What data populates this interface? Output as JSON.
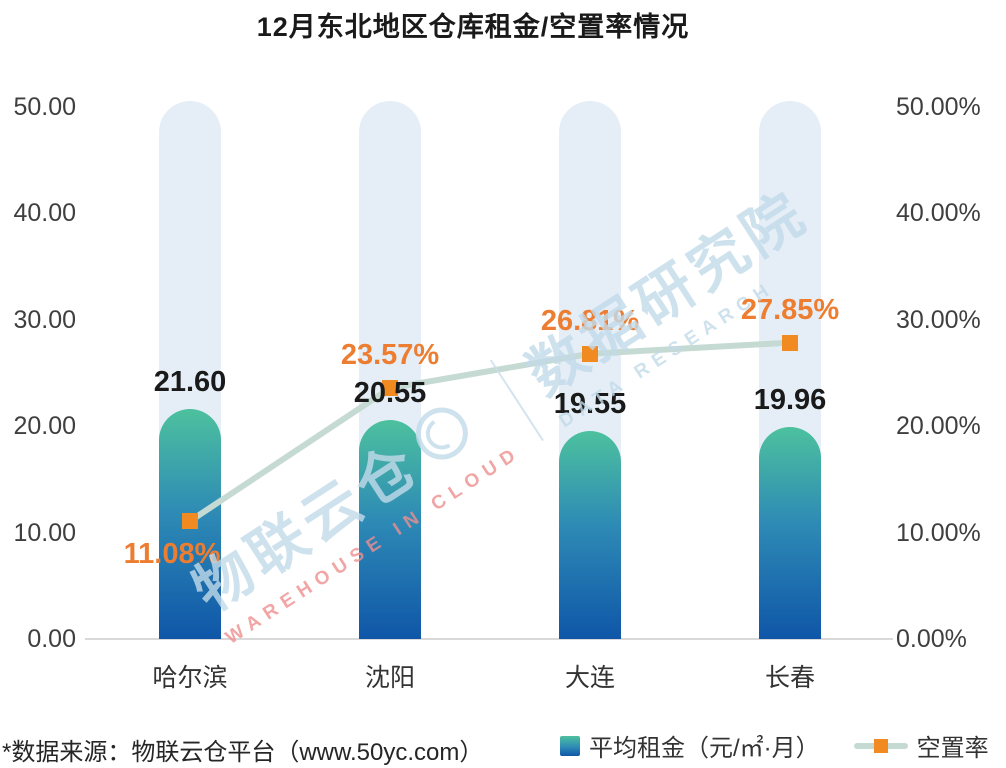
{
  "title": "12月东北地区仓库租金/空置率情况",
  "footer": {
    "source_note": "*数据来源：物联云仓平台（www.50yc.com）"
  },
  "legend": {
    "rent_label": "平均租金（元/㎡·月）",
    "vacancy_label": "空置率"
  },
  "watermark": {
    "brand": "物联云仓",
    "brand_sub": "WAREHOUSE IN CLOUD",
    "org": "数据研究院",
    "org_sub": "DATA RESEARCH"
  },
  "chart_data": {
    "type": "bar",
    "subtype": "bar+line combo, dual axis",
    "categories": [
      "哈尔滨",
      "沈阳",
      "大连",
      "长春"
    ],
    "series": [
      {
        "name": "平均租金（元/㎡·月）",
        "type": "bar",
        "axis": "left",
        "values": [
          21.6,
          20.55,
          19.55,
          19.96
        ],
        "labels": [
          "21.60",
          "20.55",
          "19.55",
          "19.96"
        ]
      },
      {
        "name": "空置率",
        "type": "line",
        "axis": "right",
        "values": [
          11.08,
          23.57,
          26.81,
          27.85
        ],
        "labels": [
          "11.08%",
          "23.57%",
          "26.81%",
          "27.85%"
        ]
      }
    ],
    "left_axis": {
      "min": 0,
      "max": 50,
      "ticks": [
        "50.00",
        "40.00",
        "30.00",
        "20.00",
        "10.00",
        "0.00"
      ]
    },
    "right_axis": {
      "min": 0,
      "max": 50,
      "ticks": [
        "50.00%",
        "40.00%",
        "30.00%",
        "20.00%",
        "10.00%",
        "0.00%"
      ]
    },
    "grid": false,
    "legend_position": "bottom",
    "colors": {
      "bar_gradient_top": "#4DC19E",
      "bar_gradient_mid": "#2E8BB5",
      "bar_gradient_bottom": "#0F56A8",
      "bar_track": "#E5EEF6",
      "line": "#C5DAD2",
      "marker": "#F18A21",
      "vacancy_label": "#ED7D31",
      "rent_label": "#1A1A1A",
      "axis_line": "#D9D9D9",
      "axis_text": "#3F3F3F"
    }
  }
}
